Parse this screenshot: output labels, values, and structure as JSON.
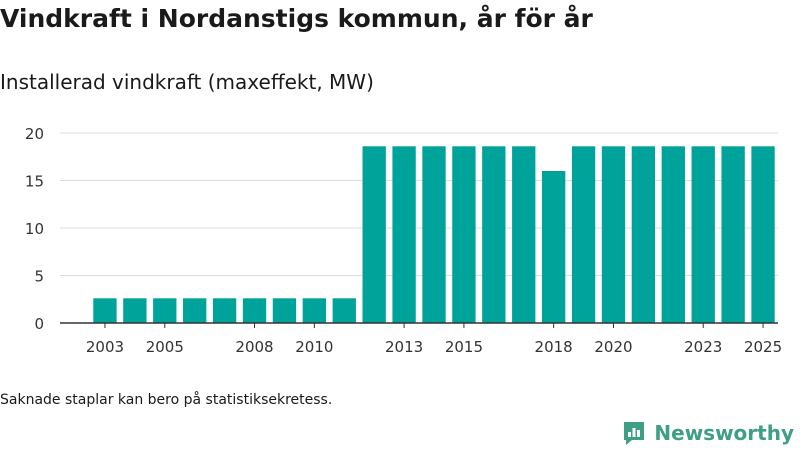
{
  "header": {
    "title": "Vindkraft i Nordanstigs kommun, år för år",
    "subtitle": "Installerad vindkraft (maxeffekt, MW)"
  },
  "footer": {
    "note": "Saknade staplar kan bero på statistiksekretess.",
    "brand": "Newsworthy",
    "brand_icon": "newsworthy-logo-icon"
  },
  "colors": {
    "bar": "#00a39a",
    "grid": "#dcdcdc",
    "axis": "#333333",
    "brand": "#3e9e86"
  },
  "chart_data": {
    "type": "bar",
    "title": "Installerad vindkraft (maxeffekt, MW)",
    "xlabel": "",
    "ylabel": "",
    "categories": [
      "2003",
      "2004",
      "2005",
      "2006",
      "2007",
      "2008",
      "2009",
      "2010",
      "2011",
      "2012",
      "2013",
      "2014",
      "2015",
      "2016",
      "2017",
      "2018",
      "2019",
      "2020",
      "2021",
      "2022",
      "2023",
      "2024",
      "2025"
    ],
    "values": [
      2.6,
      2.6,
      2.6,
      2.6,
      2.6,
      2.6,
      2.6,
      2.6,
      2.6,
      18.6,
      18.6,
      18.6,
      18.6,
      18.6,
      18.6,
      16.0,
      18.6,
      18.6,
      18.6,
      18.6,
      18.6,
      18.6,
      18.6
    ],
    "x_tick_labels": [
      "2003",
      "2005",
      "2008",
      "2010",
      "2013",
      "2015",
      "2018",
      "2020",
      "2023",
      "2025"
    ],
    "y_ticks": [
      0,
      5,
      10,
      15,
      20
    ],
    "ylim": [
      0,
      20
    ],
    "grid": true
  }
}
